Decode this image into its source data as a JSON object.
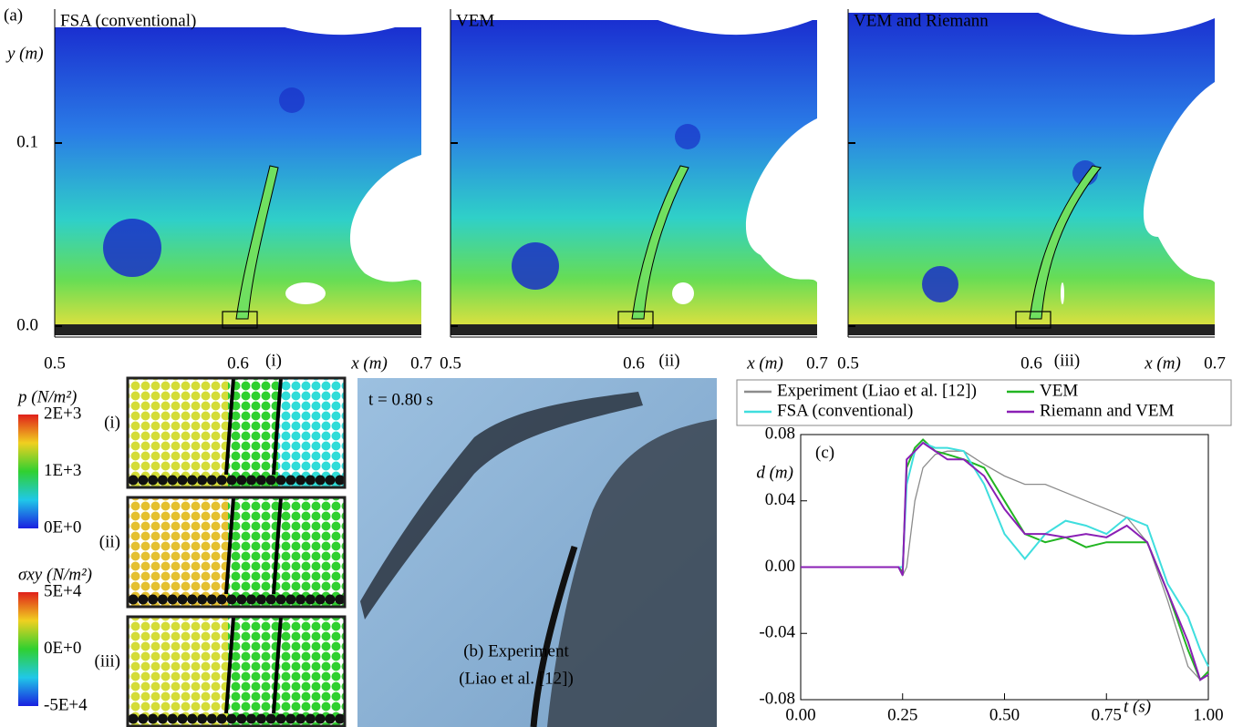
{
  "panel_a": {
    "label": "(a)",
    "y_label": "y (m)",
    "x_label": "x (m)",
    "yticks": [
      "0.1",
      "0.0"
    ],
    "xticks": [
      "0.5",
      "0.6",
      "0.7"
    ],
    "plots": [
      {
        "title": "FSA (conventional)",
        "inset": "(i)"
      },
      {
        "title": "VEM",
        "inset": "(ii)"
      },
      {
        "title": "VEM and Riemann",
        "inset": "(iii)"
      }
    ]
  },
  "panel_small": {
    "rows": [
      "(i)",
      "(ii)",
      "(iii)"
    ],
    "colorbars": [
      {
        "label": "p (N/m²)",
        "ticks": [
          "2E+3",
          "1E+3",
          "0E+0"
        ]
      },
      {
        "label": "σxy (N/m²)",
        "ticks": [
          "5E+4",
          "0E+0",
          "-5E+4"
        ]
      }
    ]
  },
  "panel_b": {
    "time": "t = 0.80 s",
    "caption": [
      "(b) Experiment",
      "(Liao et al. [12])"
    ]
  },
  "chart_data": {
    "type": "line",
    "annotation": "(c)",
    "x_label": "t (s)",
    "y_label": "d (m)",
    "x": [
      0,
      0.24,
      0.25,
      0.26,
      0.28,
      0.3,
      0.33,
      0.36,
      0.4,
      0.45,
      0.5,
      0.55,
      0.6,
      0.65,
      0.7,
      0.75,
      0.8,
      0.85,
      0.9,
      0.95,
      0.98,
      1.0
    ],
    "series": [
      {
        "name": "Experiment (Liao et al. [12])",
        "color": "#8c8c8c",
        "values": [
          0,
          0,
          -0.005,
          0,
          0.04,
          0.06,
          0.068,
          0.07,
          0.07,
          0.062,
          0.055,
          0.05,
          0.05,
          0.045,
          0.04,
          0.035,
          0.03,
          0.015,
          -0.02,
          -0.06,
          -0.068,
          -0.065
        ]
      },
      {
        "name": "VEM",
        "color": "#22b522",
        "values": [
          0,
          0,
          -0.003,
          0.06,
          0.072,
          0.077,
          0.07,
          0.068,
          0.065,
          0.06,
          0.04,
          0.02,
          0.015,
          0.018,
          0.012,
          0.015,
          0.015,
          0.015,
          -0.015,
          -0.05,
          -0.068,
          -0.063
        ]
      },
      {
        "name": "FSA (conventional)",
        "color": "#3fdede",
        "values": [
          0,
          0,
          0,
          0.05,
          0.07,
          0.075,
          0.072,
          0.072,
          0.07,
          0.05,
          0.02,
          0.005,
          0.02,
          0.028,
          0.025,
          0.02,
          0.03,
          0.025,
          -0.01,
          -0.03,
          -0.05,
          -0.06
        ]
      },
      {
        "name": "Riemann and VEM",
        "color": "#8a1fb5",
        "values": [
          0,
          0,
          -0.005,
          0.065,
          0.07,
          0.075,
          0.07,
          0.065,
          0.065,
          0.055,
          0.035,
          0.02,
          0.02,
          0.018,
          0.02,
          0.018,
          0.025,
          0.015,
          -0.015,
          -0.045,
          -0.068,
          -0.065
        ]
      }
    ],
    "xlim": [
      0,
      1
    ],
    "ylim": [
      -0.08,
      0.08
    ],
    "xticks": [
      {
        "value": 0,
        "label": "0.00"
      },
      {
        "value": 0.25,
        "label": "0.25"
      },
      {
        "value": 0.5,
        "label": "0.50"
      },
      {
        "value": 0.75,
        "label": "0.75"
      },
      {
        "value": 1,
        "label": "1.00"
      }
    ],
    "yticks": [
      {
        "value": -0.08,
        "label": "-0.08"
      },
      {
        "value": -0.04,
        "label": "-0.04"
      },
      {
        "value": 0,
        "label": "0.00"
      },
      {
        "value": 0.04,
        "label": "0.04"
      },
      {
        "value": 0.08,
        "label": "0.08"
      }
    ],
    "legend": "top"
  }
}
